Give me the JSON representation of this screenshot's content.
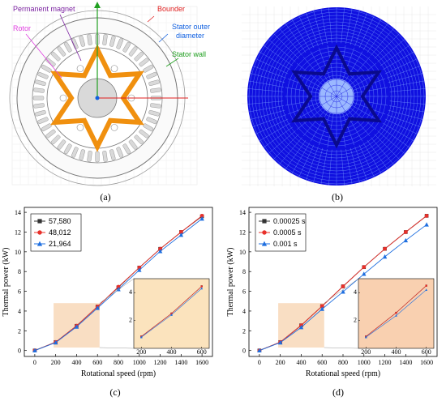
{
  "panel_a": {
    "caption": "(a)",
    "labels": {
      "permanent_magnet": "Permanent magnet",
      "rotor": "Rotor",
      "bounder": "Bounder",
      "stator_outer_1": "Stator outer",
      "stator_outer_2": "diameter",
      "stator_wall": "Stator wall"
    },
    "colors": {
      "magnet": "#f0900f",
      "magnet_label": "#7a1fa0",
      "rotor_label": "#e040e0",
      "bounder_label": "#e02020",
      "stator_outer_label": "#1060e0",
      "stator_wall_label": "#20a020",
      "slot_fill": "#d9d9d9",
      "core_fill": "#d9d9d9"
    }
  },
  "panel_b": {
    "caption": "(b)",
    "colors": {
      "mesh": "#1010e0",
      "mesh_dark": "#0a0a8c",
      "mesh_light": "#7aa0ff"
    }
  },
  "chart_data": [
    {
      "type": "line",
      "caption": "(c)",
      "xlabel": "Rotational speed (rpm)",
      "ylabel": "Thermal power (kW)",
      "xlim": [
        -100,
        1700
      ],
      "ylim": [
        -0.6,
        14.5
      ],
      "xticks": [
        0,
        200,
        400,
        600,
        800,
        1000,
        1200,
        1400,
        1600
      ],
      "yticks": [
        0,
        2,
        4,
        6,
        8,
        10,
        12,
        14
      ],
      "x": [
        0,
        200,
        400,
        600,
        800,
        1000,
        1200,
        1400,
        1600
      ],
      "series": [
        {
          "name": "57,580",
          "color": "#333333",
          "marker": "square",
          "values": [
            0,
            0.85,
            2.5,
            4.45,
            6.4,
            8.4,
            10.3,
            12.0,
            13.6
          ]
        },
        {
          "name": "48,012",
          "color": "#e8302a",
          "marker": "circle",
          "values": [
            0,
            0.85,
            2.5,
            4.45,
            6.45,
            8.4,
            10.3,
            12.0,
            13.65
          ]
        },
        {
          "name": "21,964",
          "color": "#1f6fe0",
          "marker": "triangle",
          "values": [
            0,
            0.8,
            2.4,
            4.3,
            6.2,
            8.15,
            10.05,
            11.7,
            13.35
          ]
        }
      ],
      "legend_position": "top-left",
      "highlight": {
        "x": [
          180,
          620
        ],
        "y": [
          0.3,
          4.8
        ],
        "color": "#f5c89b"
      },
      "inset": {
        "xlim": [
          150,
          650
        ],
        "ylim": [
          0,
          5
        ],
        "xticks": [
          200,
          400,
          600
        ],
        "yticks": [
          2,
          4
        ],
        "background": "#fbe3bd"
      }
    },
    {
      "type": "line",
      "caption": "(d)",
      "xlabel": "Rotational speed (rpm)",
      "ylabel": "Thermal power (kW)",
      "xlim": [
        -100,
        1700
      ],
      "ylim": [
        -0.6,
        14.5
      ],
      "xticks": [
        0,
        200,
        400,
        600,
        800,
        1000,
        1200,
        1400,
        1600
      ],
      "yticks": [
        0,
        2,
        4,
        6,
        8,
        10,
        12,
        14
      ],
      "x": [
        0,
        200,
        400,
        600,
        800,
        1000,
        1200,
        1400,
        1600
      ],
      "series": [
        {
          "name": "0.00025 s",
          "color": "#333333",
          "marker": "square",
          "values": [
            0,
            0.85,
            2.55,
            4.5,
            6.5,
            8.45,
            10.3,
            12.0,
            13.65
          ]
        },
        {
          "name": "0.0005 s",
          "color": "#e8302a",
          "marker": "circle",
          "values": [
            0,
            0.85,
            2.55,
            4.5,
            6.5,
            8.45,
            10.3,
            12.0,
            13.65
          ]
        },
        {
          "name": "0.001 s",
          "color": "#1f6fe0",
          "marker": "triangle",
          "values": [
            0,
            0.8,
            2.35,
            4.2,
            5.95,
            7.75,
            9.5,
            11.15,
            12.75
          ]
        }
      ],
      "legend_position": "top-left",
      "highlight": {
        "x": [
          180,
          620
        ],
        "y": [
          0.3,
          4.8
        ],
        "color": "#f5c89b"
      },
      "inset": {
        "xlim": [
          150,
          650
        ],
        "ylim": [
          0,
          5
        ],
        "xticks": [
          200,
          400,
          600
        ],
        "yticks": [
          2,
          4
        ],
        "background": "#f9d0b0"
      }
    }
  ]
}
